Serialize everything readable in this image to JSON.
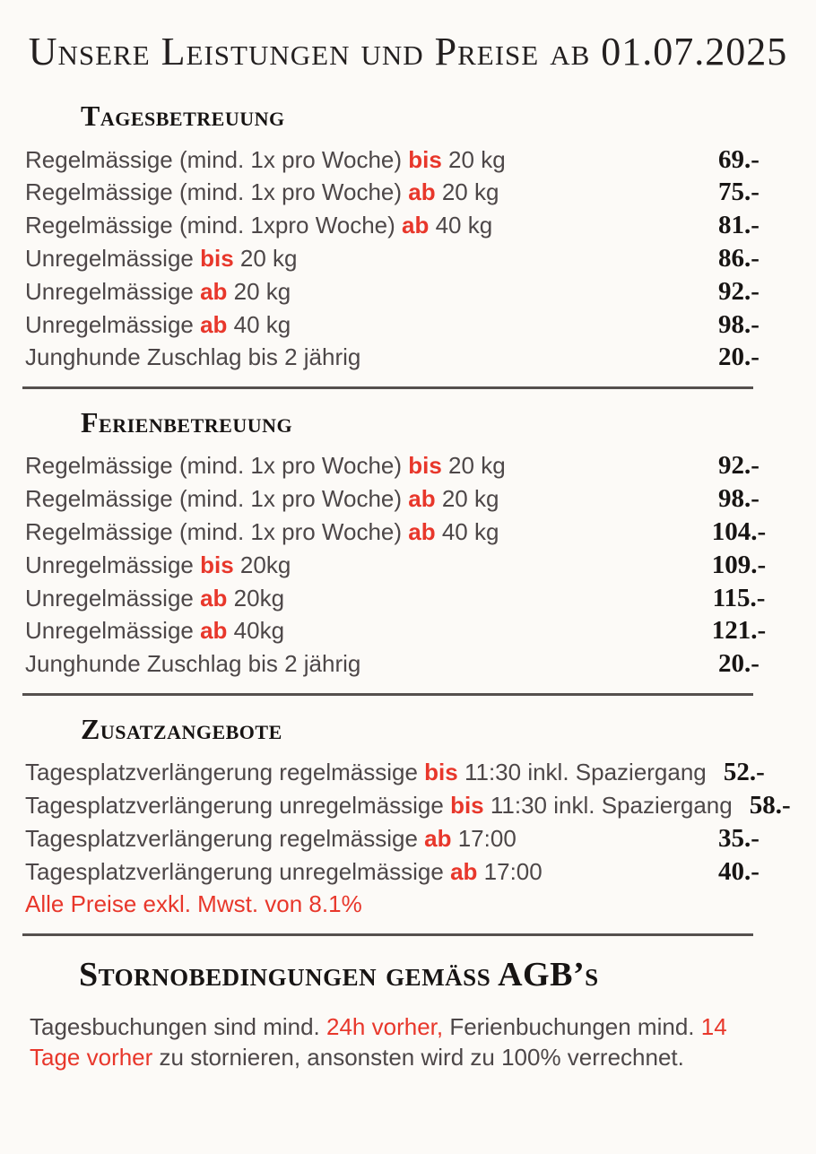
{
  "page": {
    "title": "Unsere Leistungen und Preise ab 01.07.2025",
    "background_color": "#fcfaf7",
    "accent_red": "#e8372b",
    "body_text_color": "#4d4748",
    "heading_color": "#171413"
  },
  "sections": [
    {
      "heading": "Tagesbetreuung",
      "rows": [
        {
          "pre": "Regelmässige (mind. 1x pro Woche) ",
          "red": "bis",
          "post": " 20 kg",
          "price": "69.-"
        },
        {
          "pre": "Regelmässige (mind. 1x pro Woche) ",
          "red": "ab",
          "post": " 20 kg",
          "price": "75.-"
        },
        {
          "pre": "Regelmässige (mind. 1xpro Woche) ",
          "red": "ab",
          "post": " 40 kg",
          "price": "81.-"
        },
        {
          "pre": "Unregelmässige ",
          "red": "bis",
          "post": " 20 kg",
          "price": "86.-"
        },
        {
          "pre": "Unregelmässige ",
          "red": "ab",
          "post": " 20 kg",
          "price": "92.-"
        },
        {
          "pre": "Unregelmässige ",
          "red": "ab",
          "post": " 40 kg",
          "price": "98.-"
        },
        {
          "pre": "Junghunde Zuschlag bis 2 jährig",
          "red": "",
          "post": "",
          "price": "20.-"
        }
      ]
    },
    {
      "heading": "Ferienbetreuung",
      "rows": [
        {
          "pre": "Regelmässige (mind. 1x pro Woche) ",
          "red": "bis",
          "post": " 20 kg",
          "price": "92.-"
        },
        {
          "pre": "Regelmässige (mind. 1x pro Woche) ",
          "red": "ab",
          "post": " 20 kg",
          "price": "98.-"
        },
        {
          "pre": "Regelmässige (mind. 1x pro Woche) ",
          "red": "ab",
          "post": " 40 kg",
          "price": "104.-"
        },
        {
          "pre": "Unregelmässige ",
          "red": "bis",
          "post": " 20kg",
          "price": "109.-"
        },
        {
          "pre": "Unregelmässige ",
          "red": "ab",
          "post": " 20kg",
          "price": "115.-"
        },
        {
          "pre": "Unregelmässige ",
          "red": "ab",
          "post": " 40kg",
          "price": "121.-"
        },
        {
          "pre": "Junghunde Zuschlag bis 2 jährig",
          "red": "",
          "post": "",
          "price": "20.-"
        }
      ]
    },
    {
      "heading": "Zusatzangebote",
      "rows": [
        {
          "pre": "Tagesplatzverlängerung regelmässige ",
          "red": "bis",
          "post": " 11:30 inkl. Spaziergang",
          "price": "52.-"
        },
        {
          "pre": "Tagesplatzverlängerung unregelmässige ",
          "red": "bis",
          "post": " 11:30 inkl. Spaziergang",
          "price": "58.-"
        },
        {
          "pre": "Tagesplatzverlängerung regelmässige ",
          "red": "ab",
          "post": " 17:00",
          "price": "35.-"
        },
        {
          "pre": "Tagesplatzverlängerung unregelmässige ",
          "red": "ab",
          "post": " 17:00",
          "price": "40.-"
        }
      ]
    }
  ],
  "vat_note": "Alle Preise exkl. Mwst. von 8.1%",
  "storno": {
    "heading": "Stornobedingungen gemäss AGB’s",
    "segments": [
      {
        "text": "Tagesbuchungen sind mind. ",
        "red": false
      },
      {
        "text": "24h vorher,",
        "red": true
      },
      {
        "text": " Ferienbuchungen mind. ",
        "red": false
      },
      {
        "text": "14 Tage vorher",
        "red": true
      },
      {
        "text": " zu stornieren, ansonsten wird zu 100% verrechnet.",
        "red": false
      }
    ]
  }
}
